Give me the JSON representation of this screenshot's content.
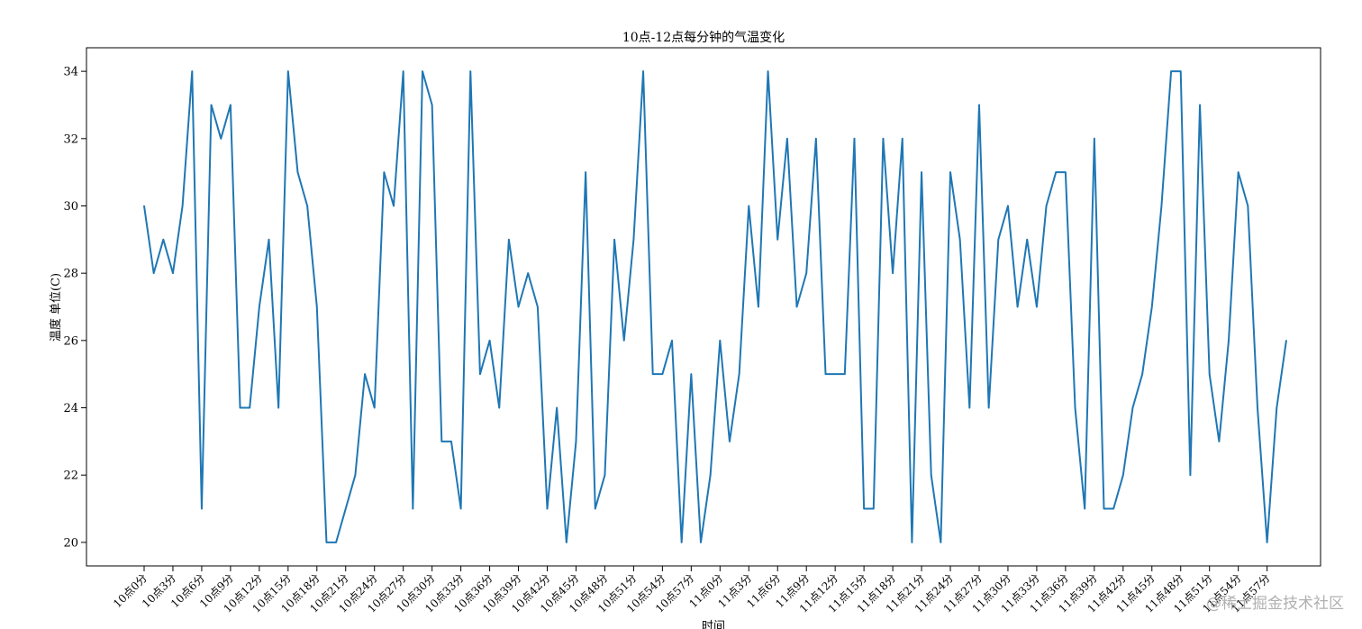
{
  "chart_data": {
    "type": "line",
    "title": "10点-12点每分钟的气温变化",
    "xlabel": "时间",
    "ylabel": "温度 单位(C)",
    "ylim": [
      19.3,
      34.7
    ],
    "yticks": [
      20,
      22,
      24,
      26,
      28,
      30,
      32,
      34
    ],
    "grid": false,
    "color": "#1f77b4",
    "x": [
      "10点0分",
      "10点1分",
      "10点2分",
      "10点3分",
      "10点4分",
      "10点5分",
      "10点6分",
      "10点7分",
      "10点8分",
      "10点9分",
      "10点10分",
      "10点11分",
      "10点12分",
      "10点13分",
      "10点14分",
      "10点15分",
      "10点16分",
      "10点17分",
      "10点18分",
      "10点19分",
      "10点20分",
      "10点21分",
      "10点22分",
      "10点23分",
      "10点24分",
      "10点25分",
      "10点26分",
      "10点27分",
      "10点28分",
      "10点29分",
      "10点30分",
      "10点31分",
      "10点32分",
      "10点33分",
      "10点34分",
      "10点35分",
      "10点36分",
      "10点37分",
      "10点38分",
      "10点39分",
      "10点40分",
      "10点41分",
      "10点42分",
      "10点43分",
      "10点44分",
      "10点45分",
      "10点46分",
      "10点47分",
      "10点48分",
      "10点49分",
      "10点50分",
      "10点51分",
      "10点52分",
      "10点53分",
      "10点54分",
      "10点55分",
      "10点56分",
      "10点57分",
      "10点58分",
      "10点59分",
      "11点0分",
      "11点1分",
      "11点2分",
      "11点3分",
      "11点4分",
      "11点5分",
      "11点6分",
      "11点7分",
      "11点8分",
      "11点9分",
      "11点10分",
      "11点11分",
      "11点12分",
      "11点13分",
      "11点14分",
      "11点15分",
      "11点16分",
      "11点17分",
      "11点18分",
      "11点19分",
      "11点20分",
      "11点21分",
      "11点22分",
      "11点23分",
      "11点24分",
      "11点25分",
      "11点26分",
      "11点27分",
      "11点28分",
      "11点29分",
      "11点30分",
      "11点31分",
      "11点32分",
      "11点33分",
      "11点34分",
      "11点35分",
      "11点36分",
      "11点37分",
      "11点38分",
      "11点39分",
      "11点40分",
      "11点41分",
      "11点42分",
      "11点43分",
      "11点44分",
      "11点45分",
      "11点46分",
      "11点47分",
      "11点48分",
      "11点49分",
      "11点50分",
      "11点51分",
      "11点52分",
      "11点53分",
      "11点54分",
      "11点55分",
      "11点56分",
      "11点57分",
      "11点58分",
      "11点59分"
    ],
    "xtick_labels": [
      "10点0分",
      "10点3分",
      "10点6分",
      "10点9分",
      "10点12分",
      "10点15分",
      "10点18分",
      "10点21分",
      "10点24分",
      "10点27分",
      "10点30分",
      "10点33分",
      "10点36分",
      "10点39分",
      "10点42分",
      "10点45分",
      "10点48分",
      "10点51分",
      "10点54分",
      "10点57分",
      "11点0分",
      "11点3分",
      "11点6分",
      "11点9分",
      "11点12分",
      "11点15分",
      "11点18分",
      "11点21分",
      "11点24分",
      "11点27分",
      "11点30分",
      "11点33分",
      "11点36分",
      "11点39分",
      "11点42分",
      "11点45分",
      "11点48分",
      "11点51分",
      "11点54分",
      "11点57分"
    ],
    "values": [
      30,
      28,
      29,
      28,
      30,
      34,
      21,
      33,
      32,
      33,
      24,
      24,
      27,
      29,
      24,
      34,
      31,
      30,
      27,
      20,
      20,
      21,
      22,
      25,
      24,
      31,
      30,
      34,
      21,
      34,
      33,
      23,
      23,
      21,
      34,
      25,
      26,
      24,
      29,
      27,
      28,
      27,
      21,
      24,
      20,
      23,
      31,
      21,
      22,
      29,
      26,
      29,
      34,
      25,
      25,
      26,
      20,
      25,
      20,
      22,
      26,
      23,
      25,
      30,
      27,
      34,
      29,
      32,
      27,
      28,
      32,
      25,
      25,
      25,
      32,
      21,
      21,
      32,
      28,
      32,
      20,
      31,
      22,
      20,
      31,
      29,
      24,
      33,
      24,
      29,
      30,
      27,
      29,
      27,
      30,
      31,
      31,
      24,
      21,
      32,
      21,
      21,
      22,
      24,
      25,
      27,
      30,
      34,
      34,
      22,
      33,
      25,
      23,
      26,
      31,
      30,
      24,
      20,
      24,
      26
    ]
  },
  "watermark": "@稀土掘金技术社区"
}
